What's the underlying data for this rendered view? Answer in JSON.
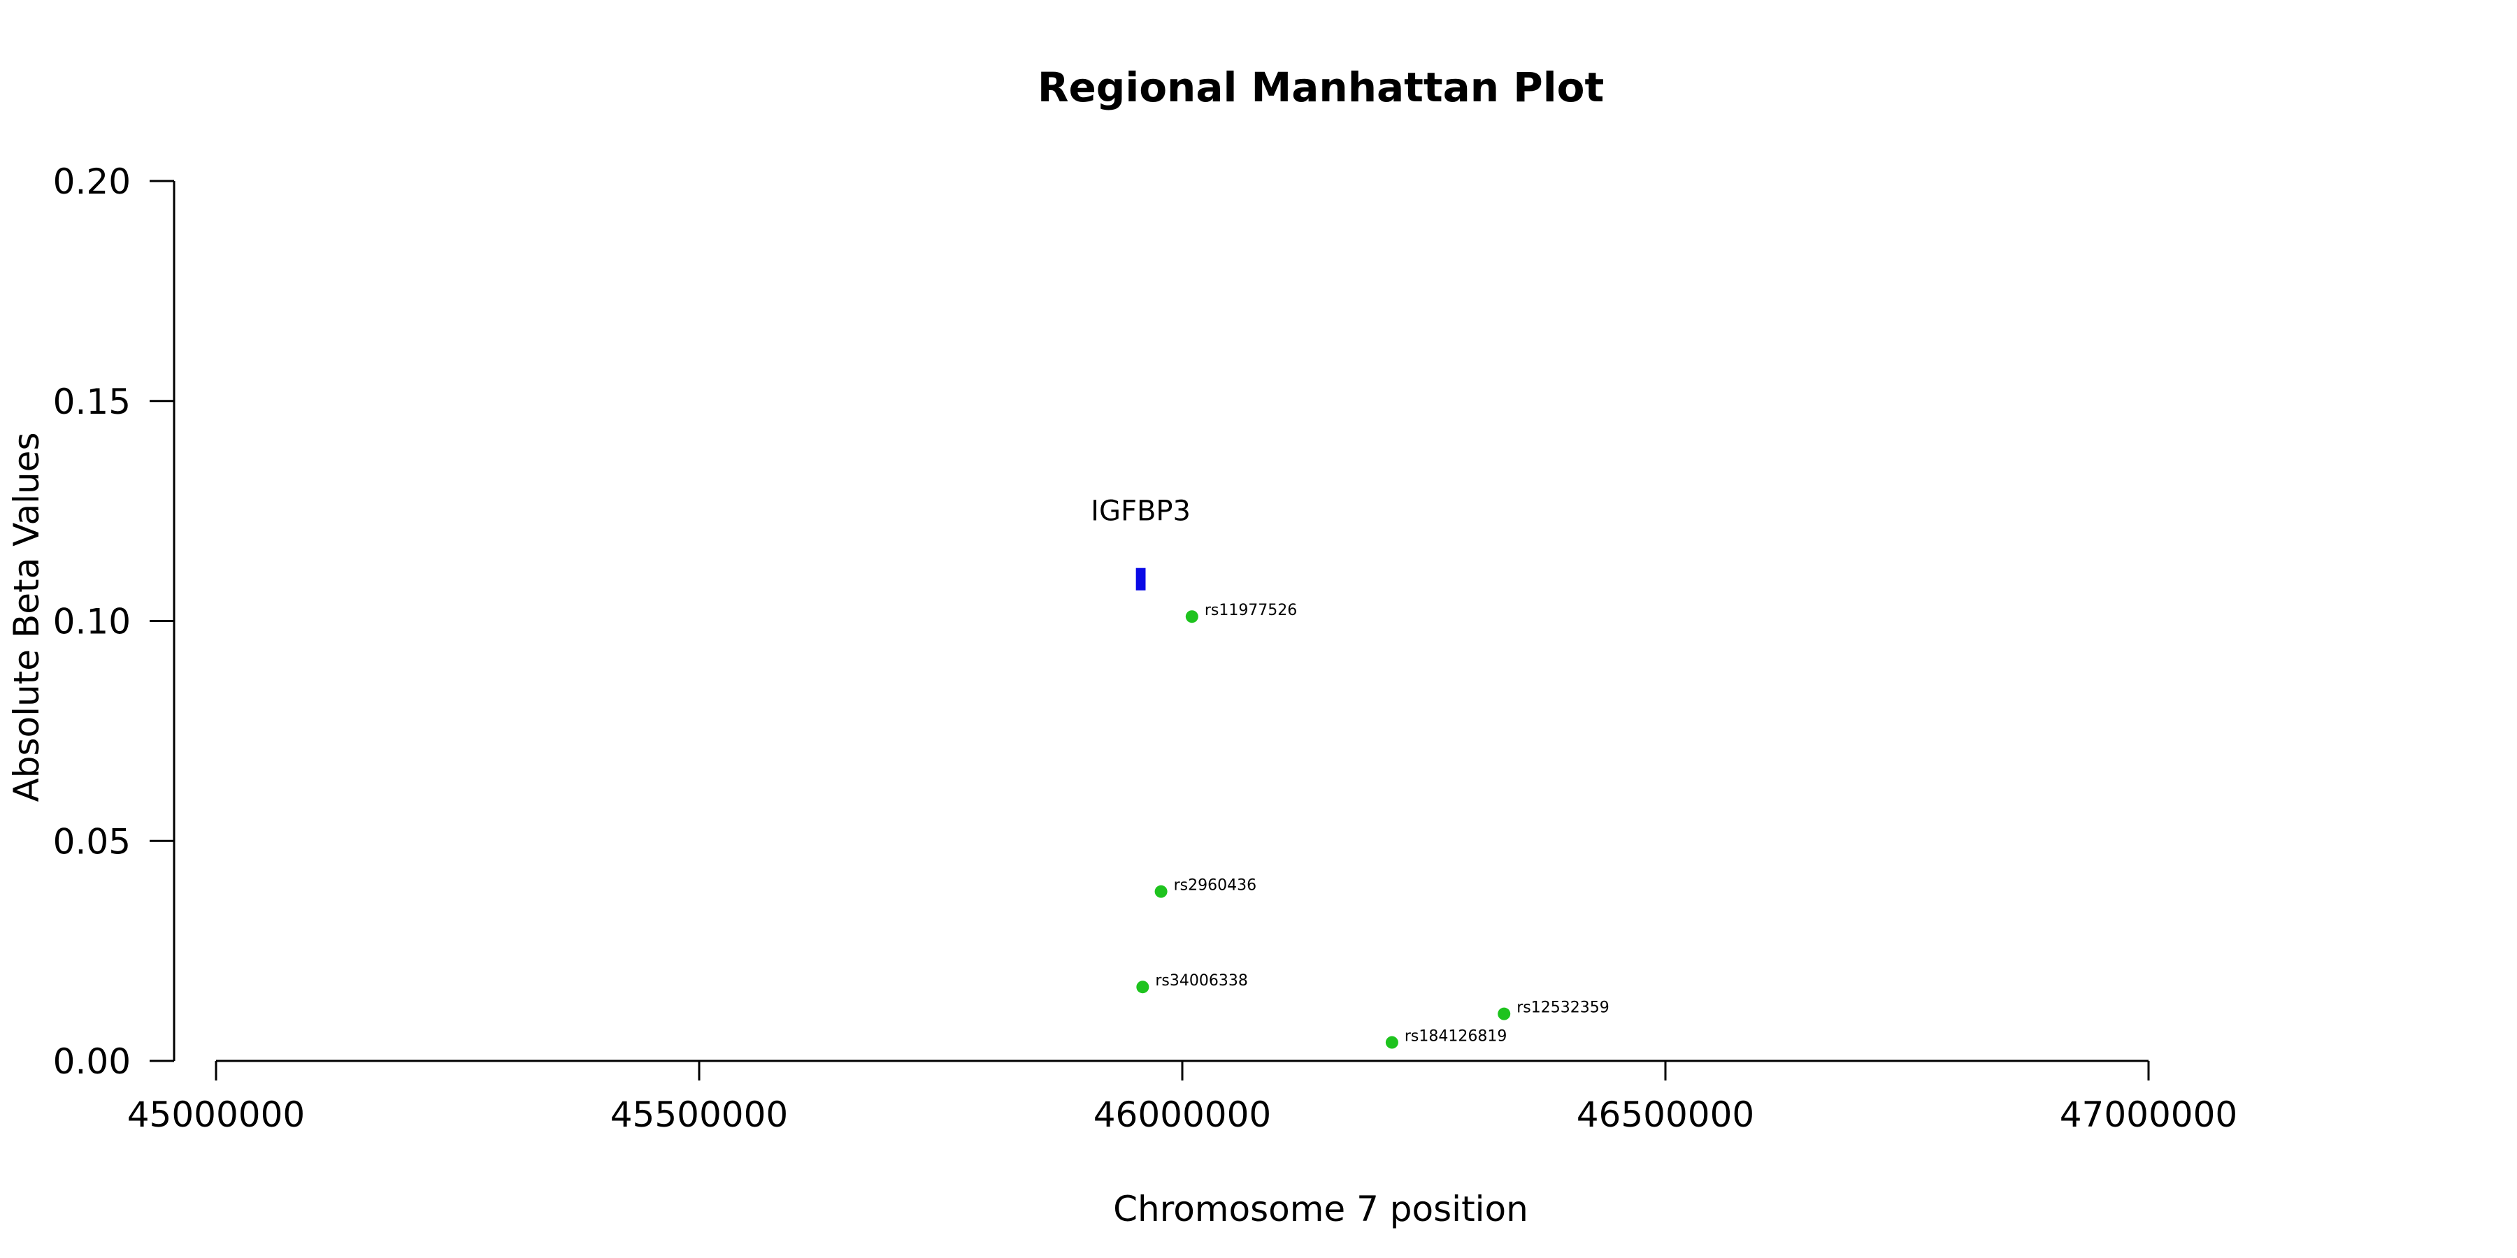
{
  "chart_data": {
    "type": "scatter",
    "title": "Regional Manhattan Plot",
    "xlabel": "Chromosome 7 position",
    "ylabel": "Absolute Beta Values",
    "xlim": [
      45000000,
      47000000
    ],
    "ylim": [
      0,
      0.2
    ],
    "x_ticks": [
      45000000,
      45500000,
      46000000,
      46500000,
      47000000
    ],
    "y_ticks": [
      0.0,
      0.05,
      0.1,
      0.15,
      0.2
    ],
    "x_tick_labels": [
      "45000000",
      "45500000",
      "46000000",
      "46500000",
      "47000000"
    ],
    "y_tick_labels": [
      "0.00",
      "0.05",
      "0.10",
      "0.15",
      "0.20"
    ],
    "grid": false,
    "points": [
      {
        "label": "rs11977526",
        "x": 46010000,
        "y": 0.101
      },
      {
        "label": "rs2960436",
        "x": 45978000,
        "y": 0.0385
      },
      {
        "label": "rs34006338",
        "x": 45959000,
        "y": 0.0168
      },
      {
        "label": "rs12532359",
        "x": 46333000,
        "y": 0.0107
      },
      {
        "label": "rs184126819",
        "x": 46217000,
        "y": 0.0042
      }
    ],
    "genes": [
      {
        "name": "IGFBP3",
        "start": 45952000,
        "end": 45962000,
        "y": 0.1095
      }
    ],
    "colors": {
      "points": "#1ec31e",
      "gene": "#0a0ae6",
      "axis": "#000000"
    }
  }
}
